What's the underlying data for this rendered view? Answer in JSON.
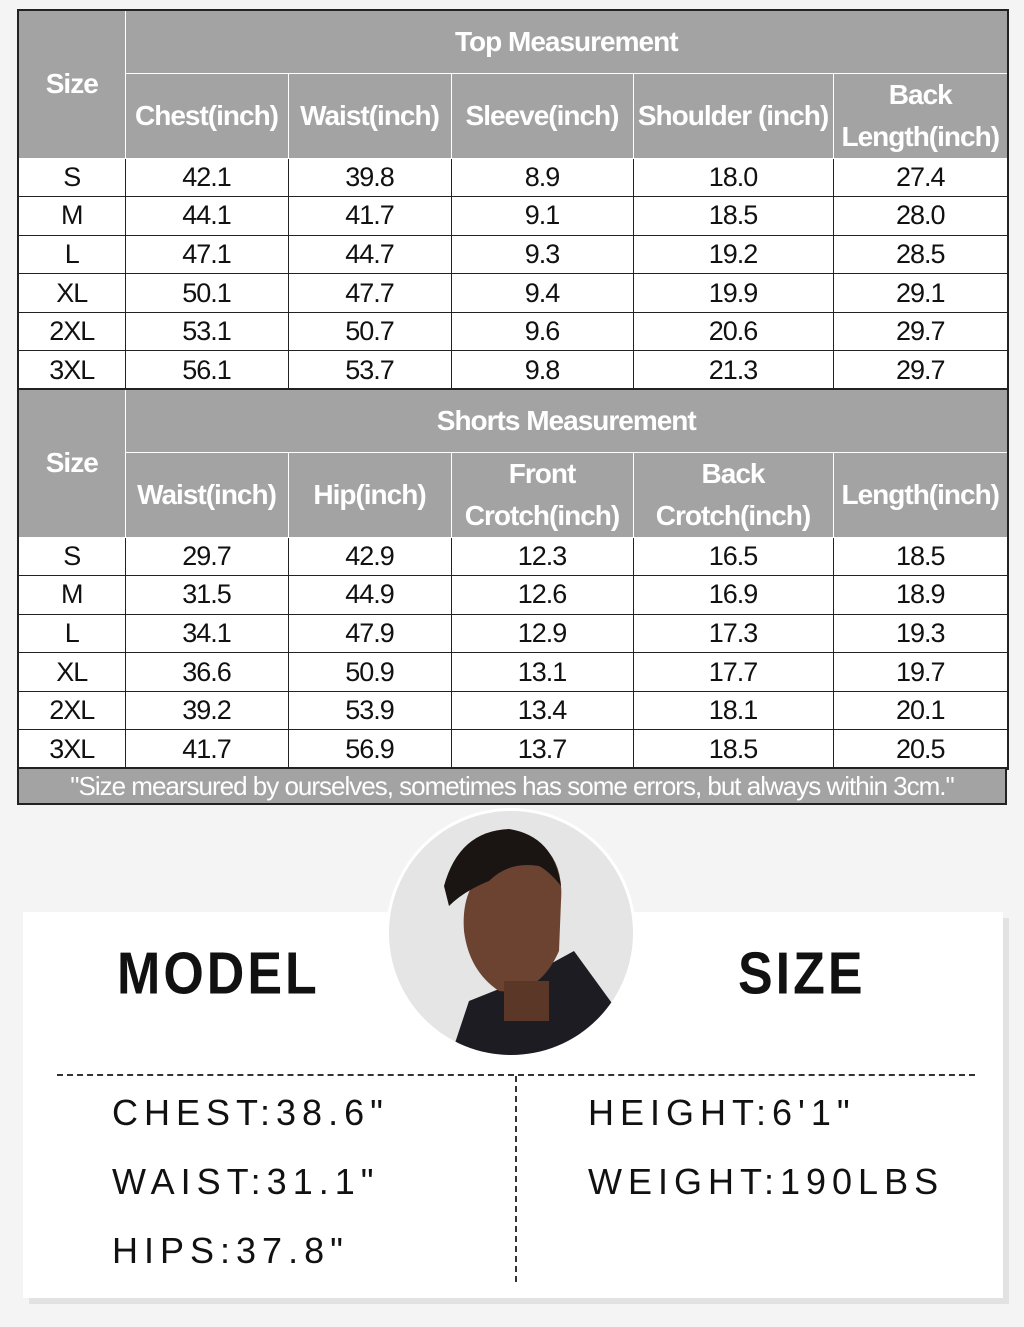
{
  "top": {
    "size_label": "Size",
    "title": "Top Measurement",
    "headers": [
      "Chest(inch)",
      "Waist(inch)",
      "Sleeve(inch)",
      "Shoulder (inch)",
      "Back Length(inch)"
    ],
    "rows": [
      [
        "S",
        "42.1",
        "39.8",
        "8.9",
        "18.0",
        "27.4"
      ],
      [
        "M",
        "44.1",
        "41.7",
        "9.1",
        "18.5",
        "28.0"
      ],
      [
        "L",
        "47.1",
        "44.7",
        "9.3",
        "19.2",
        "28.5"
      ],
      [
        "XL",
        "50.1",
        "47.7",
        "9.4",
        "19.9",
        "29.1"
      ],
      [
        "2XL",
        "53.1",
        "50.7",
        "9.6",
        "20.6",
        "29.7"
      ],
      [
        "3XL",
        "56.1",
        "53.7",
        "9.8",
        "21.3",
        "29.7"
      ]
    ]
  },
  "shorts": {
    "size_label": "Size",
    "title": "Shorts Measurement",
    "headers": [
      "Waist(inch)",
      "Hip(inch)",
      "Front Crotch(inch)",
      "Back Crotch(inch)",
      "Length(inch)"
    ],
    "rows": [
      [
        "S",
        "29.7",
        "42.9",
        "12.3",
        "16.5",
        "18.5"
      ],
      [
        "M",
        "31.5",
        "44.9",
        "12.6",
        "16.9",
        "18.9"
      ],
      [
        "L",
        "34.1",
        "47.9",
        "12.9",
        "17.3",
        "19.3"
      ],
      [
        "XL",
        "36.6",
        "50.9",
        "13.1",
        "17.7",
        "19.7"
      ],
      [
        "2XL",
        "39.2",
        "53.9",
        "13.4",
        "18.1",
        "20.1"
      ],
      [
        "3XL",
        "41.7",
        "56.9",
        "13.7",
        "18.5",
        "20.5"
      ]
    ]
  },
  "note": "\"Size mearsured by ourselves, sometimes has some errors, but always within 3cm.\"",
  "model": {
    "title_left": "MODEL",
    "title_right": "SIZE",
    "stats_left": [
      "CHEST:38.6\"",
      "WAIST:31.1\"",
      "HIPS:37.8\""
    ],
    "stats_right": [
      "HEIGHT:6'1\"",
      "WEIGHT:190LBS"
    ]
  }
}
